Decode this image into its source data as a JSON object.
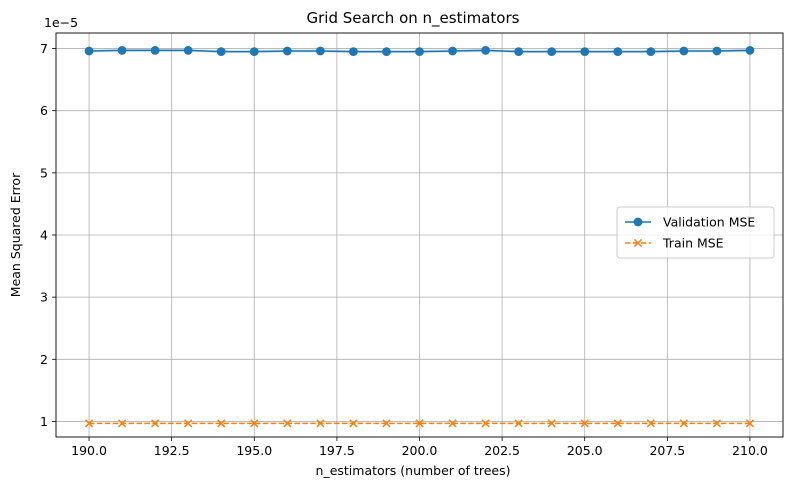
{
  "chart_data": {
    "type": "line",
    "title": "Grid Search on n_estimators",
    "xlabel": "n_estimators (number of trees)",
    "ylabel": "Mean Squared Error",
    "y_offset_label": "1e−5",
    "xlim": [
      189.0,
      211.0
    ],
    "ylim": [
      0.75,
      7.25
    ],
    "x_ticks": [
      190.0,
      192.5,
      195.0,
      197.5,
      200.0,
      202.5,
      205.0,
      207.5,
      210.0
    ],
    "x_tick_labels": [
      "190.0",
      "192.5",
      "195.0",
      "197.5",
      "200.0",
      "202.5",
      "205.0",
      "207.5",
      "210.0"
    ],
    "y_ticks": [
      1,
      2,
      3,
      4,
      5,
      6,
      7
    ],
    "y_tick_labels": [
      "1",
      "2",
      "3",
      "4",
      "5",
      "6",
      "7"
    ],
    "grid": true,
    "legend_position": "center-right",
    "x": [
      190,
      191,
      192,
      193,
      194,
      195,
      196,
      197,
      198,
      199,
      200,
      201,
      202,
      203,
      204,
      205,
      206,
      207,
      208,
      209,
      210
    ],
    "series": [
      {
        "name": "Validation MSE",
        "color": "#1f77b4",
        "linestyle": "solid",
        "marker": "circle",
        "band": true,
        "values": [
          6.96,
          6.97,
          6.97,
          6.97,
          6.95,
          6.95,
          6.96,
          6.96,
          6.95,
          6.95,
          6.95,
          6.96,
          6.97,
          6.95,
          6.95,
          6.95,
          6.95,
          6.95,
          6.96,
          6.96,
          6.97
        ]
      },
      {
        "name": "Train MSE",
        "color": "#ff7f0e",
        "linestyle": "dashed",
        "marker": "x",
        "band": false,
        "values": [
          0.97,
          0.97,
          0.97,
          0.97,
          0.97,
          0.97,
          0.97,
          0.97,
          0.97,
          0.97,
          0.97,
          0.97,
          0.97,
          0.97,
          0.97,
          0.97,
          0.97,
          0.97,
          0.97,
          0.97,
          0.97
        ]
      }
    ]
  }
}
